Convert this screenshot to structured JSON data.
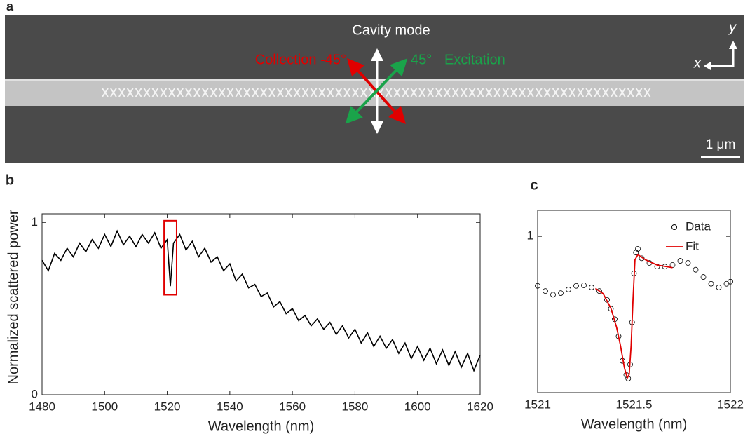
{
  "figure_a": {
    "label": "a",
    "title": "Cavity mode",
    "collection": "Collection -45°",
    "excitation_angle": "45°",
    "excitation": "Excitation",
    "axis_x": "x",
    "axis_y": "y",
    "scale_bar": "1 μm"
  },
  "chart_data": [
    {
      "type": "line",
      "label": "b",
      "xlabel": "Wavelength (nm)",
      "ylabel": "Normalized scattered power",
      "xlim": [
        1480,
        1620
      ],
      "xticks": [
        1480,
        1500,
        1520,
        1540,
        1560,
        1580,
        1600,
        1620
      ],
      "ylim": [
        0,
        1.05
      ],
      "yticks": [
        0,
        1
      ],
      "series": [
        {
          "color": "#000000",
          "x": [
            1480,
            1482,
            1484,
            1486,
            1488,
            1490,
            1492,
            1494,
            1496,
            1498,
            1500,
            1502,
            1504,
            1506,
            1508,
            1510,
            1512,
            1514,
            1516,
            1518,
            1520,
            1521,
            1522,
            1524,
            1526,
            1528,
            1530,
            1532,
            1534,
            1536,
            1538,
            1540,
            1542,
            1544,
            1546,
            1548,
            1550,
            1552,
            1554,
            1556,
            1558,
            1560,
            1562,
            1564,
            1566,
            1568,
            1570,
            1572,
            1574,
            1576,
            1578,
            1580,
            1582,
            1584,
            1586,
            1588,
            1590,
            1592,
            1594,
            1596,
            1598,
            1600,
            1602,
            1604,
            1606,
            1608,
            1610,
            1612,
            1614,
            1616,
            1618,
            1620
          ],
          "values": [
            0.78,
            0.72,
            0.82,
            0.78,
            0.85,
            0.8,
            0.88,
            0.83,
            0.9,
            0.85,
            0.93,
            0.86,
            0.95,
            0.87,
            0.92,
            0.86,
            0.93,
            0.88,
            0.94,
            0.85,
            0.9,
            0.63,
            0.88,
            0.93,
            0.84,
            0.89,
            0.8,
            0.85,
            0.77,
            0.8,
            0.72,
            0.76,
            0.66,
            0.7,
            0.62,
            0.64,
            0.57,
            0.59,
            0.51,
            0.54,
            0.47,
            0.5,
            0.43,
            0.46,
            0.4,
            0.44,
            0.38,
            0.42,
            0.35,
            0.4,
            0.33,
            0.38,
            0.3,
            0.36,
            0.28,
            0.34,
            0.27,
            0.32,
            0.24,
            0.3,
            0.21,
            0.28,
            0.2,
            0.27,
            0.18,
            0.26,
            0.17,
            0.25,
            0.16,
            0.24,
            0.14,
            0.23
          ]
        }
      ],
      "highlight": {
        "x": [
          1519,
          1523
        ],
        "y": [
          0.58,
          1.01
        ],
        "color": "#e00000"
      }
    },
    {
      "type": "scatter",
      "label": "c",
      "xlabel": "Wavelength (nm)",
      "xlim": [
        1521,
        1522
      ],
      "xticks": [
        1521,
        1521.5,
        1522
      ],
      "ylim": [
        0.7,
        1.05
      ],
      "yticks": [
        1
      ],
      "legend": "upper right",
      "series": [
        {
          "name": "Data",
          "color": "#000000",
          "marker": "circle",
          "x": [
            1521.0,
            1521.04,
            1521.08,
            1521.12,
            1521.16,
            1521.2,
            1521.24,
            1521.28,
            1521.32,
            1521.36,
            1521.38,
            1521.4,
            1521.42,
            1521.44,
            1521.46,
            1521.47,
            1521.48,
            1521.49,
            1521.5,
            1521.51,
            1521.52,
            1521.54,
            1521.58,
            1521.62,
            1521.66,
            1521.7,
            1521.74,
            1521.78,
            1521.82,
            1521.86,
            1521.9,
            1521.94,
            1521.98,
            1522.0
          ],
          "values": [
            0.905,
            0.895,
            0.888,
            0.891,
            0.898,
            0.905,
            0.906,
            0.902,
            0.895,
            0.878,
            0.861,
            0.841,
            0.808,
            0.761,
            0.734,
            0.727,
            0.754,
            0.835,
            0.929,
            0.969,
            0.976,
            0.958,
            0.949,
            0.942,
            0.942,
            0.945,
            0.953,
            0.949,
            0.936,
            0.922,
            0.909,
            0.902,
            0.909,
            0.913
          ]
        },
        {
          "name": "Fit",
          "color": "#e00000",
          "marker": "line",
          "x": [
            1521.3,
            1521.34,
            1521.38,
            1521.41,
            1521.43,
            1521.45,
            1521.465,
            1521.475,
            1521.485,
            1521.495,
            1521.505,
            1521.52,
            1521.56,
            1521.62,
            1521.7
          ],
          "values": [
            0.9,
            0.89,
            0.862,
            0.825,
            0.79,
            0.748,
            0.728,
            0.735,
            0.79,
            0.88,
            0.955,
            0.965,
            0.955,
            0.945,
            0.94
          ]
        }
      ]
    }
  ]
}
